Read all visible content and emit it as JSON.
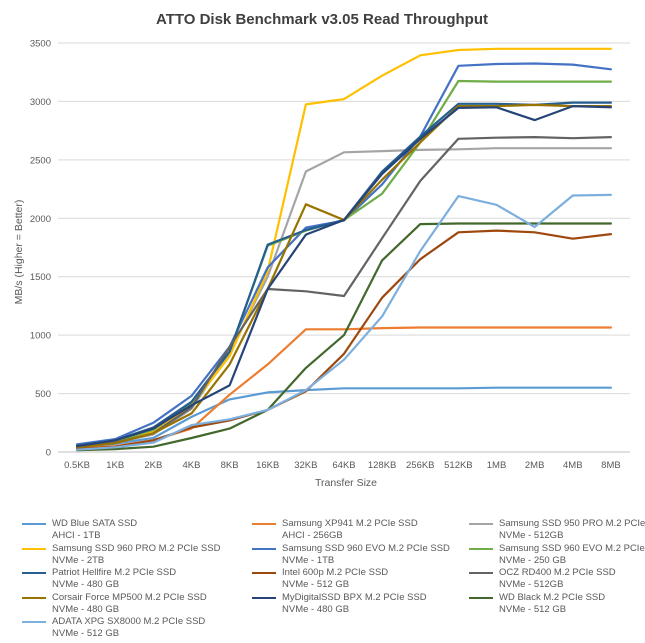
{
  "chart_data": {
    "type": "line",
    "title": "ATTO Disk Benchmark v3.05 Read Throughput",
    "xlabel": "Transfer Size",
    "ylabel": "MB/s (Higher = Better)",
    "ylim": [
      0,
      3500
    ],
    "yticks": [
      "0",
      "500",
      "1000",
      "1500",
      "2000",
      "2500",
      "3000",
      "3500"
    ],
    "grid": true,
    "legend_position": "bottom",
    "categories": [
      "0.5KB",
      "1KB",
      "2KB",
      "4KB",
      "8KB",
      "16KB",
      "32KB",
      "64KB",
      "128KB",
      "256KB",
      "512KB",
      "1MB",
      "2MB",
      "4MB",
      "8MB"
    ],
    "series": [
      {
        "name": "WD Blue SATA SSD AHCI - 1TB",
        "color": "#5b9bd5",
        "values": [
          40,
          70,
          120,
          300,
          450,
          510,
          530,
          545,
          545,
          545,
          545,
          550,
          550,
          550,
          550
        ]
      },
      {
        "name": "Samsung XP941 M.2 PCIe SSD AHCI - 256GB",
        "color": "#ed7d31",
        "values": [
          30,
          50,
          100,
          200,
          490,
          750,
          1050,
          1050,
          1060,
          1065,
          1065,
          1065,
          1065,
          1065,
          1065
        ]
      },
      {
        "name": "Samsung SSD 950 PRO M.2 PCIe SSD NVMe - 512GB",
        "color": "#a5a5a5",
        "values": [
          50,
          80,
          150,
          370,
          850,
          1500,
          2400,
          2565,
          2575,
          2585,
          2590,
          2600,
          2600,
          2600,
          2600
        ]
      },
      {
        "name": "Samsung SSD 960 PRO M.2 PCIe SSD NVMe - 2TB",
        "color": "#ffc000",
        "values": [
          45,
          90,
          180,
          400,
          820,
          1550,
          2975,
          3020,
          3220,
          3395,
          3440,
          3450,
          3450,
          3450,
          3450
        ]
      },
      {
        "name": "Samsung SSD 960 EVO M.2 PCIe SSD NVMe - 1TB",
        "color": "#4472c4",
        "values": [
          65,
          110,
          250,
          480,
          900,
          1580,
          1920,
          1980,
          2290,
          2700,
          3305,
          3320,
          3325,
          3315,
          3275
        ]
      },
      {
        "name": "Samsung SSD 960 EVO M.2 PCIe SSD NVMe - 250 GB",
        "color": "#70ad47",
        "values": [
          55,
          90,
          190,
          420,
          860,
          1765,
          1895,
          1985,
          2210,
          2650,
          3175,
          3170,
          3170,
          3170,
          3170
        ]
      },
      {
        "name": "Patriot Hellfire M.2 PCIe SSD NVMe - 480 GB",
        "color": "#255e91",
        "values": [
          55,
          100,
          210,
          430,
          860,
          1775,
          1900,
          1985,
          2400,
          2700,
          2980,
          2980,
          2970,
          2990,
          2990
        ]
      },
      {
        "name": "Intel 600p M.2 PCIe SSD NVMe - 512 GB",
        "color": "#9e480e",
        "values": [
          25,
          45,
          100,
          210,
          270,
          360,
          520,
          840,
          1320,
          1650,
          1880,
          1895,
          1880,
          1825,
          1865
        ]
      },
      {
        "name": "OCZ RD400 M.2 PCIe SSD NVMe - 512GB",
        "color": "#636363",
        "values": [
          45,
          80,
          160,
          380,
          900,
          1395,
          1375,
          1335,
          1830,
          2320,
          2680,
          2690,
          2695,
          2685,
          2695
        ]
      },
      {
        "name": "Corsair Force MP500 M.2 PCIe SSD NVMe - 480 GB",
        "color": "#997300",
        "values": [
          40,
          75,
          160,
          330,
          750,
          1395,
          2120,
          1985,
          2330,
          2650,
          2960,
          2960,
          2970,
          2960,
          2960
        ]
      },
      {
        "name": "MyDigitalSSD BPX M.2 PCIe SSD NVMe - 480 GB",
        "color": "#264478",
        "values": [
          50,
          100,
          200,
          400,
          570,
          1395,
          1860,
          1985,
          2380,
          2680,
          2945,
          2950,
          2840,
          2960,
          2950
        ]
      },
      {
        "name": "WD Black M.2 PCIe SSD NVMe - 512 GB",
        "color": "#43682b",
        "values": [
          15,
          25,
          45,
          120,
          200,
          360,
          720,
          1000,
          1640,
          1950,
          1955,
          1955,
          1955,
          1955,
          1955
        ]
      },
      {
        "name": "ADATA XPG SX8000 M.2 PCIe SSD NVMe - 512 GB",
        "color": "#7cafdd",
        "values": [
          20,
          40,
          80,
          230,
          280,
          360,
          530,
          790,
          1160,
          1720,
          2190,
          2115,
          1925,
          2195,
          2200
        ]
      }
    ]
  }
}
